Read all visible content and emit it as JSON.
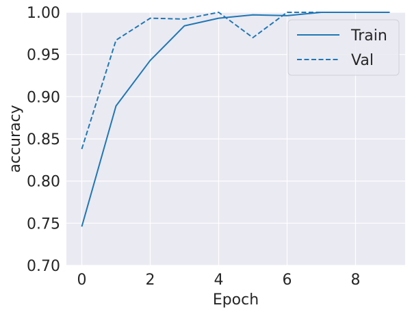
{
  "chart_data": {
    "type": "line",
    "title": "",
    "xlabel": "Epoch",
    "ylabel": "accuracy",
    "xlim": [
      -0.45,
      9.45
    ],
    "ylim": [
      0.7,
      1.0
    ],
    "xticks": [
      0,
      2,
      4,
      6,
      8
    ],
    "xtick_labels": [
      "0",
      "2",
      "4",
      "6",
      "8"
    ],
    "yticks": [
      0.7,
      0.75,
      0.8,
      0.85,
      0.9,
      0.95,
      1.0
    ],
    "ytick_labels": [
      "0.70",
      "0.75",
      "0.80",
      "0.85",
      "0.90",
      "0.95",
      "1.00"
    ],
    "grid": true,
    "legend_position": "top-right",
    "x": [
      0,
      1,
      2,
      3,
      4,
      5,
      6,
      7,
      8,
      9
    ],
    "series": [
      {
        "name": "Train",
        "style": "solid",
        "color": "#1f77b4",
        "values": [
          0.746,
          0.889,
          0.943,
          0.984,
          0.993,
          0.997,
          0.996,
          1.0,
          1.0,
          1.0
        ]
      },
      {
        "name": "Val",
        "style": "dashed",
        "color": "#1f77b4",
        "values": [
          0.838,
          0.967,
          0.993,
          0.992,
          1.0,
          0.97,
          1.0,
          1.0,
          1.0,
          1.0
        ]
      }
    ]
  },
  "colors": {
    "plot_background": "#eaeaf2",
    "grid": "#ffffff",
    "text": "#262626"
  }
}
